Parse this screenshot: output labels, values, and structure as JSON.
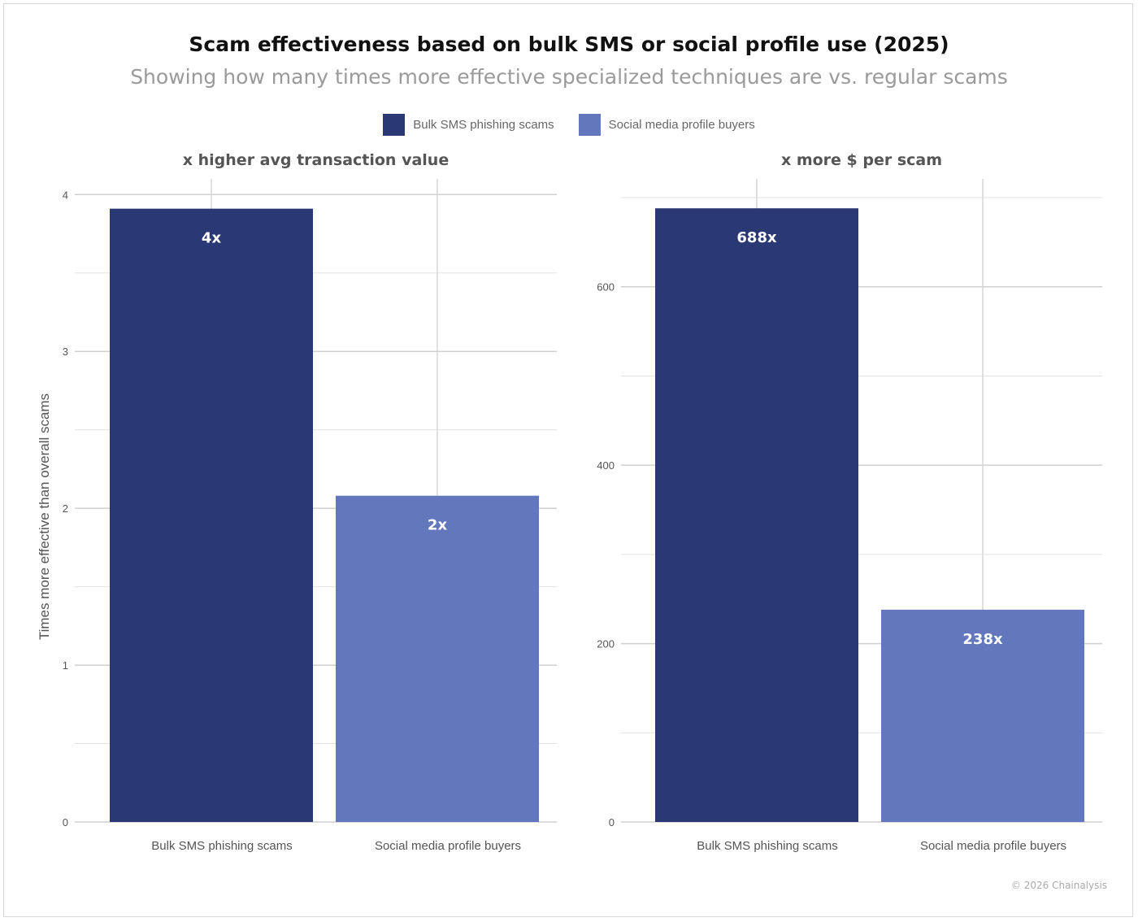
{
  "title": "Scam effectiveness based on bulk SMS or social profile use (2025)",
  "subtitle": "Showing how many times more effective specialized techniques are vs. regular scams",
  "legend": [
    {
      "label": "Bulk SMS phishing scams",
      "color": "#2a3873"
    },
    {
      "label": "Social media profile buyers",
      "color": "#6378bc"
    }
  ],
  "credit": "© 2026 Chainalysis",
  "chart_data": [
    {
      "type": "bar",
      "title": "x higher avg transaction value",
      "ylabel": "Times more effective than overall scams",
      "categories": [
        "Bulk SMS phishing scams",
        "Social media profile buyers"
      ],
      "values": [
        3.91,
        2.08
      ],
      "data_labels": [
        "4x",
        "2x"
      ],
      "colors": [
        "#2a3873",
        "#6378bc"
      ],
      "ylim": [
        0,
        4.1
      ],
      "yticks": [
        0,
        1,
        2,
        3,
        4
      ],
      "minor_grid_step": 0.5,
      "grid": true
    },
    {
      "type": "bar",
      "title": "x more $ per scam",
      "ylabel": "",
      "categories": [
        "Bulk SMS phishing scams",
        "Social media profile buyers"
      ],
      "values": [
        688,
        238
      ],
      "data_labels": [
        "688x",
        "238x"
      ],
      "colors": [
        "#2a3873",
        "#6378bc"
      ],
      "ylim": [
        0,
        721
      ],
      "yticks": [
        0,
        200,
        400,
        600
      ],
      "minor_grid_step": 100,
      "grid": true
    }
  ]
}
